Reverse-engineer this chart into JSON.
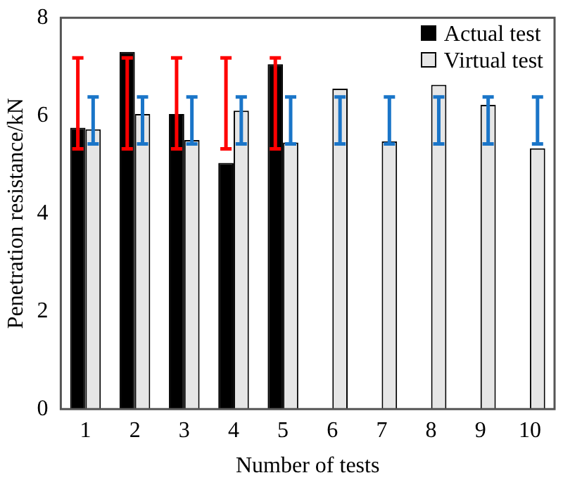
{
  "chart_data": {
    "type": "bar",
    "xlabel": "Number of tests",
    "ylabel": "Penetration resistance/kN",
    "categories": [
      "1",
      "2",
      "3",
      "4",
      "5",
      "6",
      "7",
      "8",
      "9",
      "10"
    ],
    "series": [
      {
        "name": "Actual test",
        "color": "#000000",
        "values": [
          5.75,
          7.3,
          6.03,
          5.03,
          7.05,
          null,
          null,
          null,
          null,
          null
        ],
        "errors": [
          [
            5.32,
            7.18
          ],
          [
            5.32,
            7.18
          ],
          [
            5.32,
            7.18
          ],
          [
            5.32,
            7.18
          ],
          [
            5.32,
            7.18
          ],
          null,
          null,
          null,
          null,
          null
        ]
      },
      {
        "name": "Virtual test",
        "color": "#e6e6e6",
        "values": [
          5.72,
          6.03,
          5.5,
          6.1,
          5.45,
          6.55,
          5.47,
          6.63,
          6.22,
          5.33
        ],
        "errors": [
          [
            5.42,
            6.38
          ],
          [
            5.42,
            6.38
          ],
          [
            5.42,
            6.38
          ],
          [
            5.42,
            6.38
          ],
          [
            5.42,
            6.38
          ],
          [
            5.42,
            6.38
          ],
          [
            5.42,
            6.38
          ],
          [
            5.42,
            6.38
          ],
          [
            5.42,
            6.38
          ],
          [
            5.42,
            6.38
          ]
        ]
      }
    ],
    "ylim": [
      0,
      8
    ],
    "yticks": [
      0,
      2,
      4,
      6,
      8
    ],
    "grid": false,
    "legend": "top right"
  }
}
